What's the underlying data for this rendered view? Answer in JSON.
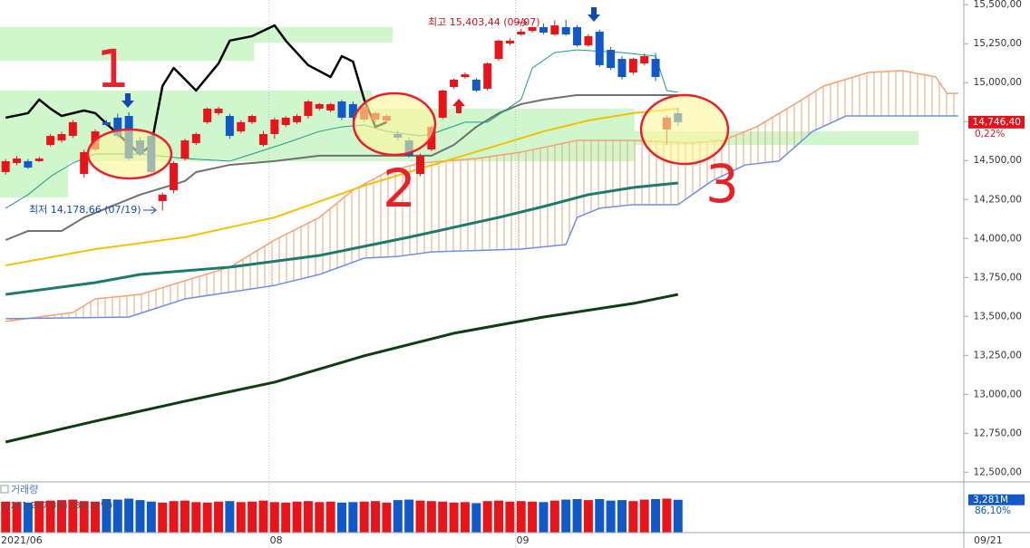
{
  "chart_data": {
    "type": "candlestick",
    "categories": [
      "2021/06",
      null,
      null,
      null,
      null,
      null,
      null,
      null,
      null,
      null,
      null,
      null,
      null,
      null,
      null,
      null,
      null,
      null,
      null,
      null,
      null,
      null,
      null,
      null,
      "08",
      null,
      null,
      null,
      null,
      null,
      null,
      null,
      null,
      null,
      null,
      null,
      null,
      null,
      null,
      null,
      null,
      null,
      null,
      null,
      null,
      null,
      "09",
      null,
      null,
      null,
      null,
      null,
      null,
      null,
      null,
      null,
      null,
      null,
      null,
      null,
      null,
      null,
      null,
      null,
      null,
      null,
      null,
      null,
      null,
      null,
      null,
      null,
      null,
      null,
      null,
      null,
      null,
      null,
      null,
      null,
      null,
      null,
      null,
      null,
      null,
      null
    ],
    "last_date": "09/21",
    "ylim": [
      12450,
      15530
    ],
    "yticks": [
      {
        "value": 12500,
        "label": "12,500,00"
      },
      {
        "value": 12750,
        "label": "12,750,00"
      },
      {
        "value": 13000,
        "label": "13,000,00"
      },
      {
        "value": 13250,
        "label": "13,250,00"
      },
      {
        "value": 13500,
        "label": "13,500,00"
      },
      {
        "value": 13750,
        "label": "13,750,00"
      },
      {
        "value": 14000,
        "label": "14,000,00"
      },
      {
        "value": 14250,
        "label": "14,250,00"
      },
      {
        "value": 14500,
        "label": "14,500,00"
      },
      {
        "value": 14750,
        "label": "14,750,00"
      },
      {
        "value": 15000,
        "label": "15,000,00"
      },
      {
        "value": 15250,
        "label": "15,250,00"
      },
      {
        "value": 15500,
        "label": "15,500,00"
      }
    ],
    "up_color": "#e8141a",
    "down_color": "#1158c8",
    "ohlc": [
      [
        14426,
        14510,
        14410,
        14496
      ],
      [
        14484,
        14530,
        14470,
        14513
      ],
      [
        14496,
        14510,
        14445,
        14455
      ],
      [
        14496,
        14525,
        14490,
        14513
      ],
      [
        14600,
        14670,
        14590,
        14658
      ],
      [
        14629,
        14685,
        14615,
        14670
      ],
      [
        14658,
        14760,
        14645,
        14746
      ],
      [
        14414,
        14570,
        14390,
        14554
      ],
      [
        14571,
        14700,
        14560,
        14687
      ],
      [
        14746,
        14760,
        14720,
        14728
      ],
      [
        14775,
        14800,
        14645,
        14658
      ],
      [
        14786,
        14810,
        14500,
        14513
      ],
      [
        14629,
        14650,
        14530,
        14542
      ],
      [
        14658,
        14670,
        14410,
        14426
      ],
      [
        14240,
        14295,
        14179,
        14281
      ],
      [
        14310,
        14495,
        14290,
        14484
      ],
      [
        14513,
        14640,
        14500,
        14629
      ],
      [
        14612,
        14680,
        14600,
        14670
      ],
      [
        14746,
        14840,
        14735,
        14833
      ],
      [
        14804,
        14845,
        14790,
        14833
      ],
      [
        14786,
        14800,
        14640,
        14658
      ],
      [
        14687,
        14760,
        14675,
        14746
      ],
      [
        14746,
        14795,
        14735,
        14786
      ],
      [
        14600,
        14690,
        14590,
        14670
      ],
      [
        14670,
        14775,
        14640,
        14763
      ],
      [
        14728,
        14785,
        14715,
        14775
      ],
      [
        14746,
        14800,
        14735,
        14786
      ],
      [
        14786,
        14890,
        14770,
        14879
      ],
      [
        14833,
        14870,
        14820,
        14862
      ],
      [
        14821,
        14870,
        14810,
        14862
      ],
      [
        14879,
        14890,
        14760,
        14775
      ],
      [
        14862,
        14880,
        14760,
        14775
      ],
      [
        14763,
        14855,
        14750,
        14844
      ],
      [
        14763,
        14815,
        14745,
        14804
      ],
      [
        14757,
        14795,
        14745,
        14786
      ],
      [
        14670,
        14690,
        14630,
        14647
      ],
      [
        14629,
        14645,
        14520,
        14531
      ],
      [
        14414,
        14545,
        14400,
        14531
      ],
      [
        14571,
        14725,
        14560,
        14716
      ],
      [
        14775,
        14955,
        14765,
        14949
      ],
      [
        14972,
        15025,
        14960,
        15019
      ],
      [
        15036,
        15065,
        15025,
        15053
      ],
      [
        15019,
        15030,
        14940,
        14949
      ],
      [
        14961,
        15130,
        14950,
        15123
      ],
      [
        15152,
        15275,
        15140,
        15269
      ],
      [
        15251,
        15285,
        15240,
        15269
      ],
      [
        15309,
        15345,
        15300,
        15327
      ],
      [
        15332,
        15360,
        15320,
        15356
      ],
      [
        15356,
        15380,
        15310,
        15321
      ],
      [
        15309,
        15400,
        15300,
        15367
      ],
      [
        15356,
        15403,
        15300,
        15309
      ],
      [
        15356,
        15370,
        15230,
        15239
      ],
      [
        15239,
        15310,
        15230,
        15298
      ],
      [
        15327,
        15340,
        15100,
        15112
      ],
      [
        15210,
        15230,
        15080,
        15094
      ],
      [
        15152,
        15170,
        15020,
        15036
      ],
      [
        15065,
        15160,
        15050,
        15152
      ],
      [
        15123,
        15185,
        15110,
        15170
      ],
      [
        15152,
        15190,
        15010,
        15036
      ],
      [
        14700,
        14790,
        14600,
        14775
      ],
      [
        14804,
        14840,
        14720,
        14746
      ]
    ],
    "cloud": {
      "color": "#f4a070",
      "span_a": {
        "color": "#f4a070",
        "x": [
          0,
          6,
          8,
          12,
          16,
          20,
          24,
          28,
          31,
          34,
          37,
          42,
          46,
          51,
          56,
          61,
          64,
          67,
          70,
          73,
          77,
          80,
          83,
          84,
          85
        ],
        "values": [
          13468,
          13525,
          13612,
          13641,
          13729,
          13816,
          13990,
          14135,
          14310,
          14426,
          14484,
          14513,
          14554,
          14629,
          14629,
          14612,
          14629,
          14716,
          14844,
          14978,
          15065,
          15077,
          15036,
          14931,
          14931
        ]
      },
      "span_b": {
        "color": "#6a8ee8",
        "x": [
          0,
          11,
          16,
          24,
          28,
          32,
          35,
          38,
          46,
          50,
          51,
          53,
          56,
          60,
          63,
          66,
          69,
          72,
          75,
          85
        ],
        "values": [
          13485,
          13496,
          13612,
          13699,
          13769,
          13874,
          13885,
          13914,
          13932,
          13961,
          14135,
          14194,
          14217,
          14217,
          14368,
          14472,
          14496,
          14687,
          14786,
          14786
        ]
      }
    },
    "lines": [
      {
        "color": "#0f3d0f",
        "width": 3,
        "x": [
          0,
          8,
          16,
          24,
          32,
          40,
          48,
          56,
          60
        ],
        "values": [
          12694,
          12828,
          12956,
          13078,
          13247,
          13392,
          13496,
          13583,
          13641
        ]
      },
      {
        "color": "#1a7a6e",
        "width": 3,
        "x": [
          0,
          8,
          12,
          20,
          28,
          36,
          44,
          48,
          52,
          56,
          60
        ],
        "values": [
          13641,
          13717,
          13769,
          13816,
          13891,
          14008,
          14135,
          14205,
          14281,
          14327,
          14356
        ]
      },
      {
        "color": "#f5c000",
        "width": 2,
        "x": [
          0,
          8,
          16,
          24,
          32,
          36,
          40,
          44,
          48,
          52,
          56,
          60
        ],
        "values": [
          13827,
          13932,
          14008,
          14135,
          14339,
          14426,
          14513,
          14600,
          14687,
          14757,
          14804,
          14833
        ]
      },
      {
        "color": "#707070",
        "width": 2,
        "x": [
          0,
          2,
          5,
          7,
          9,
          12,
          16,
          17,
          20,
          24,
          28,
          32,
          38,
          40,
          42,
          44,
          46,
          48,
          51,
          56,
          60
        ],
        "values": [
          13990,
          14048,
          14048,
          14135,
          14194,
          14281,
          14368,
          14426,
          14472,
          14496,
          14531,
          14531,
          14531,
          14600,
          14716,
          14804,
          14862,
          14891,
          14920,
          14920,
          14920
        ]
      },
      {
        "color": "#1d9a88",
        "width": 1,
        "x": [
          0,
          2,
          4,
          6,
          8,
          12,
          16,
          20,
          22,
          25,
          28,
          30,
          32,
          34,
          37,
          38,
          41,
          43,
          46,
          47,
          49,
          51,
          55,
          58,
          59,
          60
        ],
        "values": [
          14194,
          14281,
          14397,
          14484,
          14542,
          14542,
          14513,
          14496,
          14542,
          14612,
          14687,
          14716,
          14728,
          14687,
          14658,
          14670,
          14746,
          14746,
          14891,
          15094,
          15193,
          15210,
          15193,
          15170,
          14949,
          14938
        ]
      },
      {
        "color": "#000000",
        "width": 2.5,
        "x": [
          0,
          2,
          3,
          4,
          5,
          7,
          8,
          10,
          12,
          13,
          14,
          15,
          17,
          19,
          20,
          22,
          24,
          25,
          27,
          29,
          30,
          31,
          32,
          33,
          34
        ],
        "values": [
          14775,
          14804,
          14891,
          14833,
          14786,
          14821,
          14804,
          14670,
          14542,
          14600,
          14978,
          15094,
          14949,
          15123,
          15269,
          15298,
          15367,
          15269,
          15112,
          15036,
          15170,
          15135,
          14891,
          14716,
          14746
        ]
      }
    ],
    "last_price": {
      "value": 14746.4,
      "label": "14,746,40",
      "change": "0,22%"
    },
    "annotations": {
      "high": "최고 15,403,44 (09/07)",
      "low": "최저 14,178,66 (07/19)"
    },
    "markers": [
      "1",
      "2",
      "3"
    ],
    "volume": {
      "label": "거래량",
      "legend_text": "3,281,287,834 (86,10%)",
      "ylim": [
        0,
        4800
      ],
      "values": [
        3100,
        3050,
        3000,
        3150,
        3200,
        3250,
        3300,
        3150,
        3100,
        3350,
        3300,
        3400,
        3250,
        3100,
        3000,
        3150,
        3200,
        3050,
        3000,
        3100,
        3150,
        3050,
        3100,
        3200,
        3050,
        3000,
        3100,
        3150,
        3050,
        3100,
        3000,
        3050,
        3100,
        3150,
        3000,
        3250,
        3300,
        3200,
        3150,
        3100,
        3000,
        3050,
        2950,
        3150,
        3200,
        3100,
        3150,
        3100,
        3050,
        3200,
        3300,
        3350,
        3250,
        3350,
        3200,
        3250,
        3150,
        3300,
        3350,
        3400,
        3281
      ],
      "last_label": "3,281M",
      "last_change": "86,10%"
    }
  }
}
